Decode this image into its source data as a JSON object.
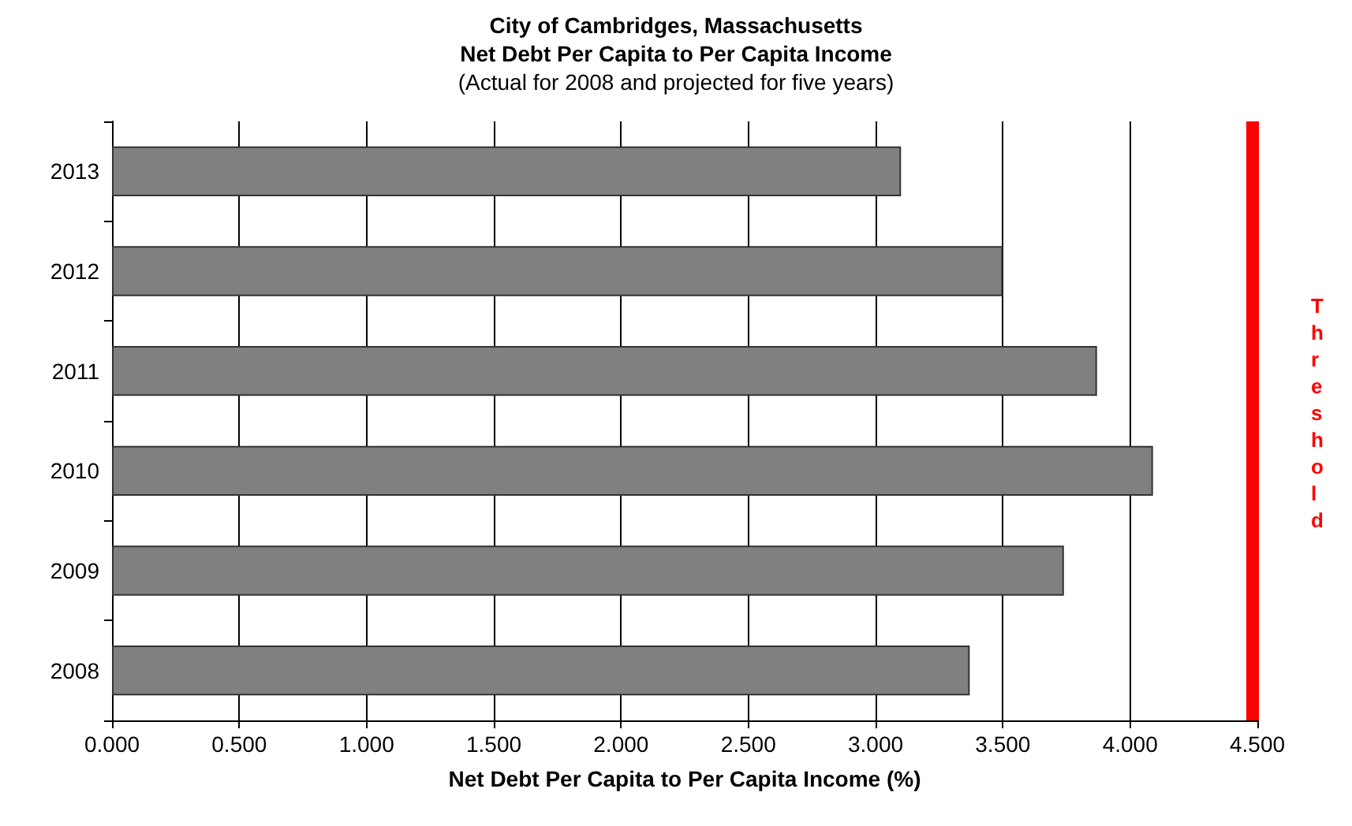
{
  "chart_data": {
    "type": "bar",
    "orientation": "horizontal",
    "title": "City of Cambridges, Massachusetts\nNet Debt Per Capita to Per Capita Income",
    "subtitle": "(Actual for 2008 and projected for five years)",
    "xlabel": "Net Debt Per Capita to Per Capita Income (%)",
    "categories": [
      "2013",
      "2012",
      "2011",
      "2010",
      "2009",
      "2008"
    ],
    "values": [
      3.1,
      3.5,
      3.87,
      4.09,
      3.74,
      3.37
    ],
    "color": "#808080",
    "xlim": [
      0,
      4.5
    ],
    "xticks": [
      {
        "value": 0,
        "label": "0.000"
      },
      {
        "value": 0.5,
        "label": "0.500"
      },
      {
        "value": 1,
        "label": "1.000"
      },
      {
        "value": 1.5,
        "label": "1.500"
      },
      {
        "value": 2,
        "label": "2.000"
      },
      {
        "value": 2.5,
        "label": "2.500"
      },
      {
        "value": 3,
        "label": "3.000"
      },
      {
        "value": 3.5,
        "label": "3.500"
      },
      {
        "value": 4,
        "label": "4.000"
      },
      {
        "value": 4.5,
        "label": "4.500"
      }
    ],
    "grid": "x",
    "ref_lines": [
      {
        "axis": "x",
        "value": 4.48,
        "label": "Threshold",
        "color": "#ff0000"
      }
    ]
  }
}
